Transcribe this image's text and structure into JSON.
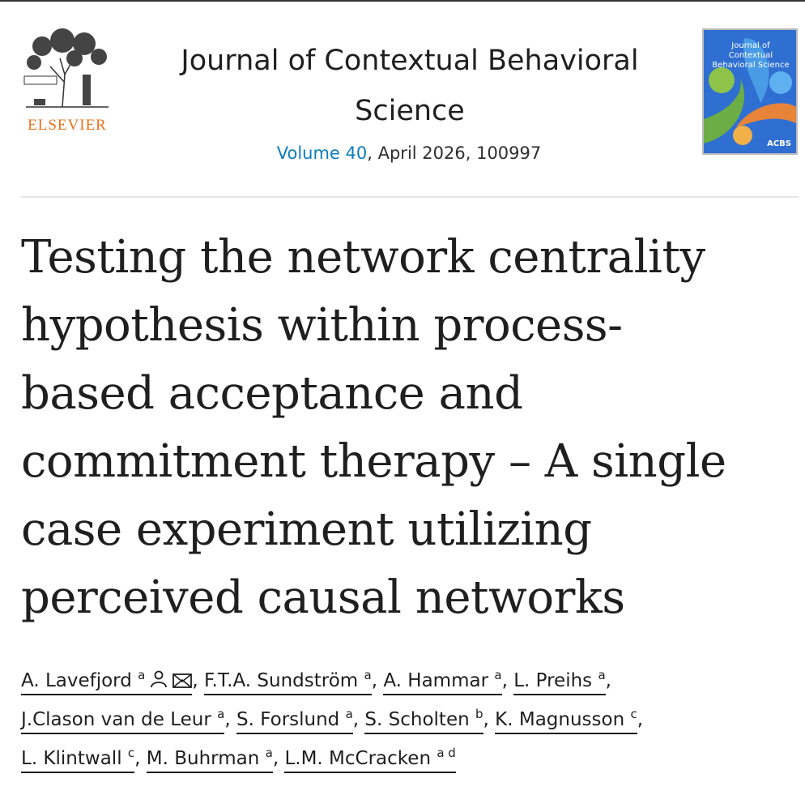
{
  "publisher": {
    "name": "ELSEVIER"
  },
  "journal": {
    "name": "Journal of Contextual Behavioral Science",
    "volume_label": "Volume 40",
    "date_article": ", April 2026, 100997"
  },
  "cover": {
    "title": "Journal of Contextual Behavioral Science",
    "badge": "ACBS"
  },
  "article": {
    "title_lines": [
      "Testing the network centrality",
      "hypothesis within process-",
      "based acceptance and",
      "commitment therapy – A single",
      "case experiment utilizing",
      "perceived causal networks"
    ]
  },
  "authors": [
    {
      "name": "A. Lavefjord",
      "aff": "a"
    },
    {
      "name": "F.T.A. Sundström",
      "aff": "a"
    },
    {
      "name": "A. Hammar",
      "aff": "a"
    },
    {
      "name": "L. Preihs",
      "aff": "a"
    },
    {
      "name": "J.Clason van de Leur",
      "aff": "a"
    },
    {
      "name": "S. Forslund",
      "aff": "a"
    },
    {
      "name": "S. Scholten",
      "aff": "b"
    },
    {
      "name": "K. Magnusson",
      "aff": "c"
    },
    {
      "name": "L. Klintwall",
      "aff": "c"
    },
    {
      "name": "M. Buhrman",
      "aff": "a"
    },
    {
      "name": "L.M. McCracken",
      "aff": "a d"
    }
  ],
  "separator": ", "
}
